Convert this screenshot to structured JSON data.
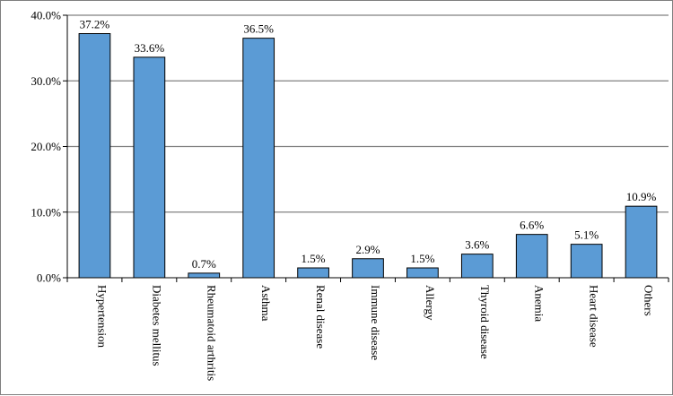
{
  "chart_data": {
    "type": "bar",
    "categories": [
      "Hypertension",
      "Diabetes mellitus",
      "Rheumatoid arthritis",
      "Asthma",
      "Renal disease",
      "Immune disease",
      "Allergy",
      "Thyroid disease",
      "Anemia",
      "Heart disease",
      "Others"
    ],
    "values": [
      37.2,
      33.6,
      0.7,
      36.5,
      1.5,
      2.9,
      1.5,
      3.6,
      6.6,
      5.1,
      10.9
    ],
    "data_labels": [
      "37.2%",
      "33.6%",
      "0.7%",
      "36.5%",
      "1.5%",
      "2.9%",
      "1.5%",
      "3.6%",
      "6.6%",
      "5.1%",
      "10.9%"
    ],
    "yticks": [
      0,
      10,
      20,
      30,
      40
    ],
    "ytick_labels": [
      "0.0%",
      "10.0%",
      "20.0%",
      "30.0%",
      "40.0%"
    ],
    "ylim": [
      0,
      40
    ],
    "grid": true,
    "bar_color": "#5b9bd5",
    "title": "",
    "xlabel": "",
    "ylabel": ""
  }
}
